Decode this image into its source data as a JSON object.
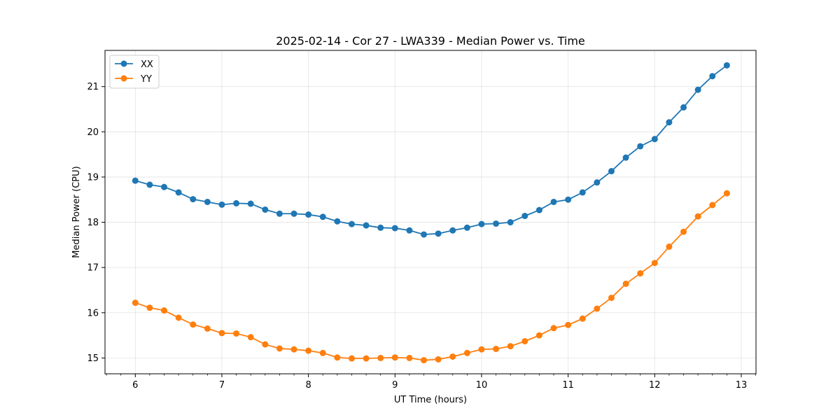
{
  "chart_data": {
    "type": "line",
    "title": "2025-02-14 - Cor 27 - LWA339 - Median Power vs. Time",
    "xlabel": "UT Time (hours)",
    "ylabel": "Median Power (CPU)",
    "xlim": [
      5.65,
      13.17
    ],
    "ylim": [
      14.65,
      21.8
    ],
    "xticks": [
      6,
      7,
      8,
      9,
      10,
      11,
      12,
      13
    ],
    "yticks": [
      15,
      16,
      17,
      18,
      19,
      20,
      21
    ],
    "grid": true,
    "legend": "upper-left",
    "x": [
      6.0,
      6.1667,
      6.3333,
      6.5,
      6.6667,
      6.8333,
      7.0,
      7.1667,
      7.3333,
      7.5,
      7.6667,
      7.8333,
      8.0,
      8.1667,
      8.3333,
      8.5,
      8.6667,
      8.8333,
      9.0,
      9.1667,
      9.3333,
      9.5,
      9.6667,
      9.8333,
      10.0,
      10.1667,
      10.3333,
      10.5,
      10.6667,
      10.8333,
      11.0,
      11.1667,
      11.3333,
      11.5,
      11.6667,
      11.8333,
      12.0,
      12.1667,
      12.3333,
      12.5,
      12.6667,
      12.8333
    ],
    "series": [
      {
        "name": "XX",
        "color": "#1f77b4",
        "values": [
          18.92,
          18.83,
          18.78,
          18.66,
          18.51,
          18.45,
          18.39,
          18.42,
          18.41,
          18.28,
          18.19,
          18.19,
          18.17,
          18.12,
          18.02,
          17.96,
          17.93,
          17.88,
          17.87,
          17.82,
          17.73,
          17.75,
          17.82,
          17.88,
          17.96,
          17.97,
          18.0,
          18.14,
          18.27,
          18.45,
          18.5,
          18.66,
          18.88,
          19.13,
          19.43,
          19.68,
          19.84,
          20.21,
          20.54,
          20.93,
          21.23,
          21.47
        ]
      },
      {
        "name": "YY",
        "color": "#ff7f0e",
        "values": [
          16.22,
          16.11,
          16.05,
          15.89,
          15.74,
          15.65,
          15.55,
          15.54,
          15.46,
          15.3,
          15.21,
          15.19,
          15.16,
          15.11,
          15.01,
          14.99,
          14.99,
          15.0,
          15.01,
          15.0,
          14.95,
          14.97,
          15.03,
          15.11,
          15.19,
          15.2,
          15.26,
          15.37,
          15.5,
          15.66,
          15.73,
          15.87,
          16.09,
          16.33,
          16.64,
          16.87,
          17.1,
          17.46,
          17.79,
          18.13,
          18.38,
          18.64
        ]
      }
    ]
  }
}
